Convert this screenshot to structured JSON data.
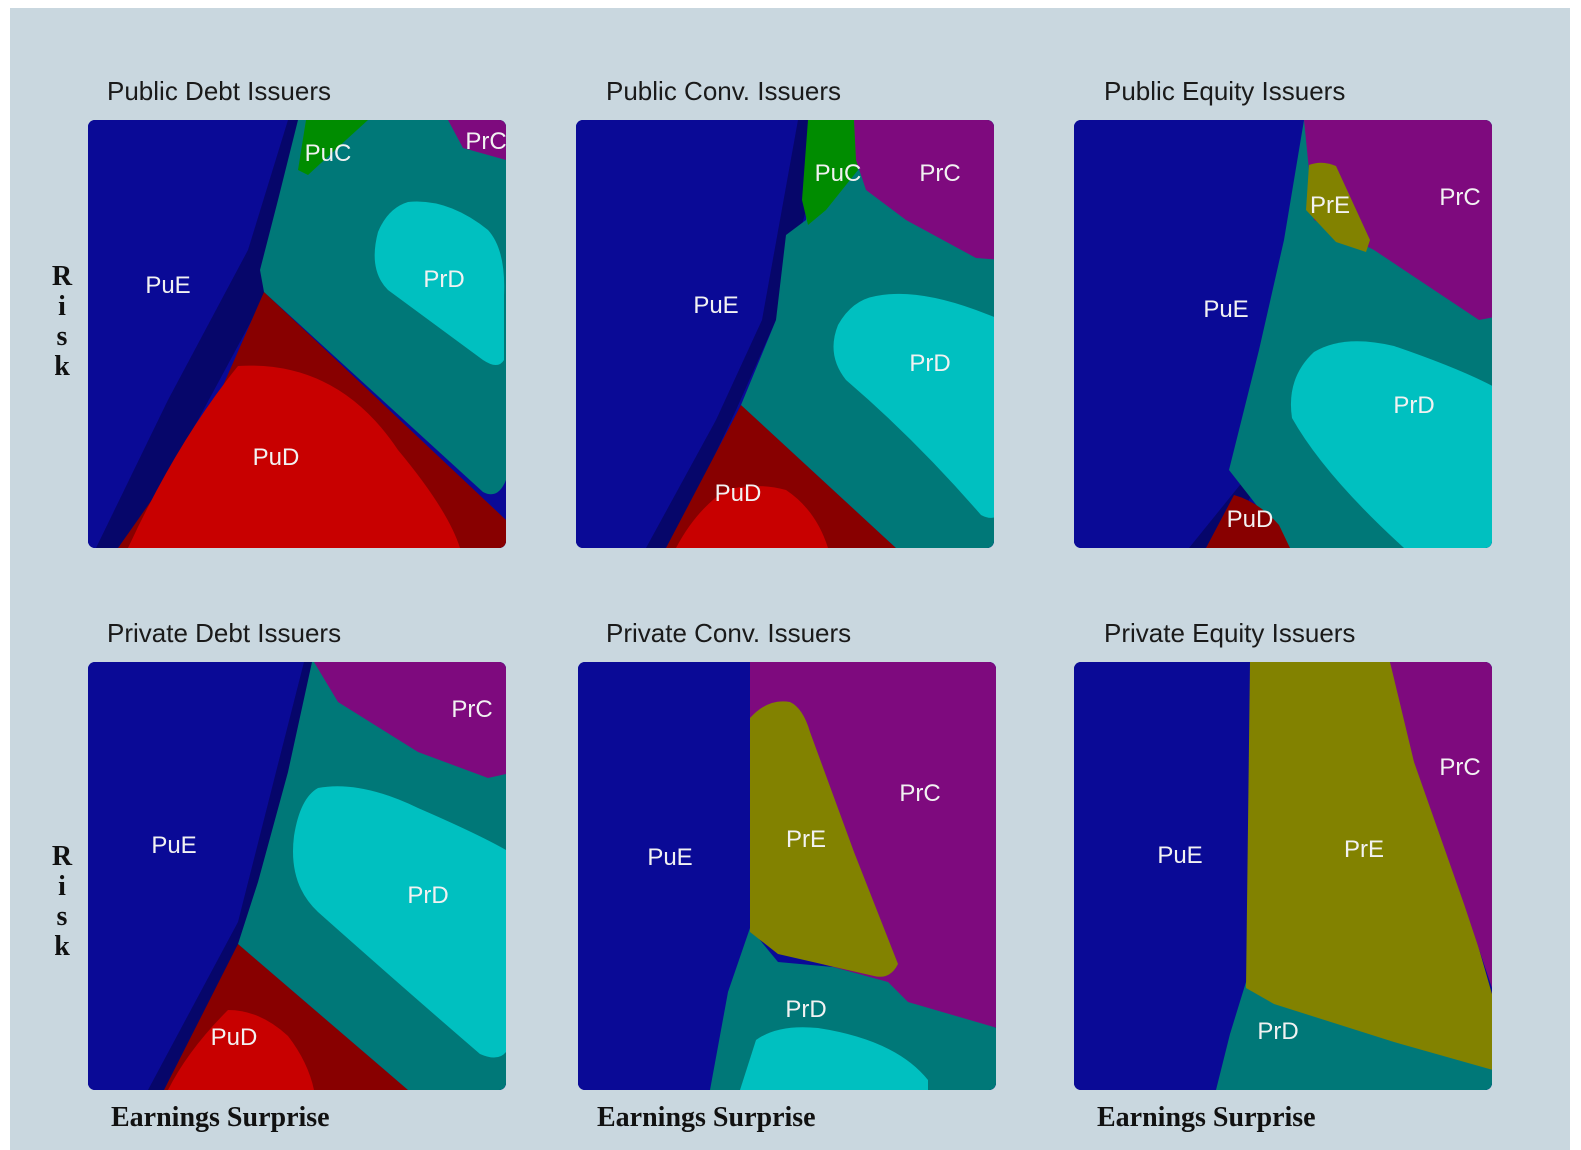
{
  "colors": {
    "PuE": "#0a0a96",
    "PuE_band": "#06066a",
    "PuD_dark": "#880000",
    "PuD": "#c80000",
    "PuC": "#008c00",
    "PrC": "#7e0a7e",
    "PrD_dark": "#007878",
    "PrD": "#00c0c0",
    "PrE": "#828200",
    "background": "#c9d7df"
  },
  "axes": {
    "ylabel": "Risk",
    "xlabel": "Earnings Surprise"
  },
  "chart_data": [
    {
      "type": "heatmap",
      "title": "Public Debt Issuers",
      "xlabel": "",
      "ylabel": "Risk",
      "regions": [
        "PuE",
        "PuC",
        "PrC",
        "PrD",
        "PuD"
      ]
    },
    {
      "type": "heatmap",
      "title": "Public Conv. Issuers",
      "xlabel": "",
      "ylabel": "",
      "regions": [
        "PuE",
        "PuC",
        "PrC",
        "PrD",
        "PuD"
      ]
    },
    {
      "type": "heatmap",
      "title": "Public Equity Issuers",
      "xlabel": "",
      "ylabel": "",
      "regions": [
        "PuE",
        "PrE",
        "PrC",
        "PrD",
        "PuD"
      ]
    },
    {
      "type": "heatmap",
      "title": "Private Debt Issuers",
      "xlabel": "Earnings Surprise",
      "ylabel": "Risk",
      "regions": [
        "PuE",
        "PrC",
        "PrD",
        "PuD"
      ]
    },
    {
      "type": "heatmap",
      "title": "Private Conv. Issuers",
      "xlabel": "Earnings Surprise",
      "ylabel": "",
      "regions": [
        "PuE",
        "PrE",
        "PrC",
        "PrD"
      ]
    },
    {
      "type": "heatmap",
      "title": "Private Equity Issuers",
      "xlabel": "Earnings Surprise",
      "ylabel": "",
      "regions": [
        "PuE",
        "PrE",
        "PrC",
        "PrD"
      ]
    }
  ]
}
